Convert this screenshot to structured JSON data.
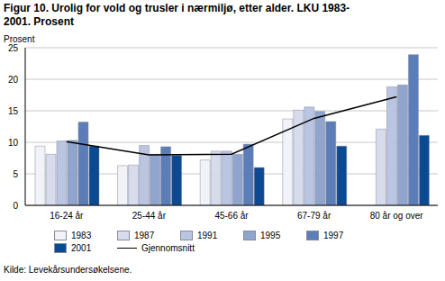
{
  "chart_data": {
    "type": "bar",
    "title": "Figur 10. Urolig for vold og trusler i nærmiljø, etter alder. LKU 1983-2001. Prosent",
    "y_label": "Prosent",
    "source": "Kilde: Levekårsundersøkelsene.",
    "categories": [
      "16-24 år",
      "25-44 år",
      "45-66 år",
      "67-79 år",
      "80 år og over"
    ],
    "series": [
      {
        "name": "1983",
        "color": "#f2f3f9",
        "values": [
          9.4,
          6.3,
          7.2,
          13.7,
          null
        ]
      },
      {
        "name": "1987",
        "color": "#d6dcec",
        "values": [
          8.1,
          6.4,
          8.6,
          15.1,
          12.1
        ]
      },
      {
        "name": "1991",
        "color": "#b9c5e1",
        "values": [
          10.2,
          9.5,
          8.6,
          15.6,
          18.8
        ]
      },
      {
        "name": "1995",
        "color": "#8fa5cd",
        "values": [
          10.3,
          8.1,
          8.1,
          14.9,
          19.1
        ]
      },
      {
        "name": "1997",
        "color": "#5b7db8",
        "values": [
          13.2,
          9.3,
          9.7,
          13.3,
          23.9
        ]
      },
      {
        "name": "2001",
        "color": "#0b4a93",
        "values": [
          9.4,
          7.9,
          6.0,
          9.4,
          11.1
        ]
      },
      {
        "name": "Gjennomsnitt",
        "type": "line",
        "color": "#000000",
        "values": [
          10.1,
          8.0,
          8.1,
          13.8,
          17.2
        ]
      }
    ],
    "ylim": [
      0,
      25
    ],
    "yticks": [
      0,
      5,
      10,
      15,
      20,
      25
    ],
    "grid": true,
    "legend": "bottom"
  }
}
